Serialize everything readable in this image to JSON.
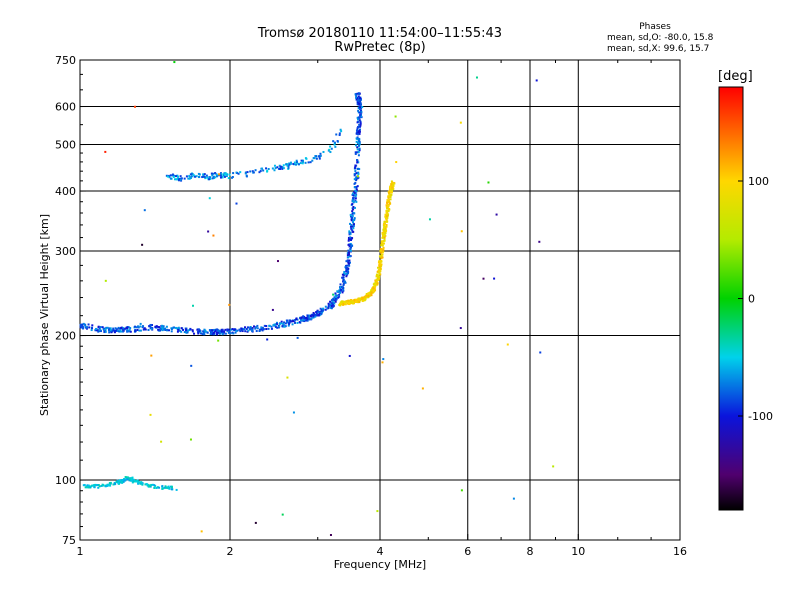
{
  "header": {
    "title_line1": "Tromsø 20180110 11:54:00–11:55:43",
    "title_line2": "RwPretec (8p)",
    "phases_heading": "Phases",
    "phases_o": "mean, sd,O: -80.0, 15.8",
    "phases_x": "mean, sd,X:  99.6, 15.7"
  },
  "colorbar": {
    "unit": "[deg]",
    "range": [
      -180,
      180
    ],
    "ticks": [
      100,
      0,
      -100
    ],
    "tick_labels": [
      "100",
      "0",
      "-100"
    ]
  },
  "chart_data": {
    "type": "scatter",
    "title": "Tromsø 20180110 11:54:00–11:55:43",
    "subtitle": "RwPretec (8p)",
    "xlabel": "Frequency [MHz]",
    "ylabel": "Stationary phase Virtual Height [km]",
    "xscale": "log",
    "yscale": "log",
    "xlim": [
      1,
      16
    ],
    "ylim": [
      75,
      750
    ],
    "xticks": [
      1,
      2,
      4,
      6,
      8,
      10,
      16
    ],
    "xtick_labels": [
      "1",
      "2",
      "4",
      "6",
      "8",
      "10",
      "16"
    ],
    "yticks": [
      75,
      100,
      200,
      300,
      400,
      500,
      600,
      750
    ],
    "ytick_labels": [
      "75",
      "100",
      "200",
      "300",
      "400",
      "500",
      "600",
      "750"
    ],
    "grid": true,
    "color_variable": "phase [deg]",
    "trace_O_mode": {
      "phase_mean_deg": -80,
      "points": [
        [
          1.0,
          210
        ],
        [
          1.1,
          206
        ],
        [
          1.2,
          205
        ],
        [
          1.4,
          208
        ],
        [
          1.6,
          205
        ],
        [
          1.8,
          203
        ],
        [
          2.0,
          204
        ],
        [
          2.2,
          206
        ],
        [
          2.5,
          210
        ],
        [
          2.8,
          216
        ],
        [
          3.0,
          222
        ],
        [
          3.2,
          232
        ],
        [
          3.35,
          250
        ],
        [
          3.45,
          280
        ],
        [
          3.5,
          320
        ],
        [
          3.55,
          380
        ],
        [
          3.6,
          450
        ],
        [
          3.62,
          520
        ],
        [
          3.65,
          600
        ],
        [
          3.6,
          640
        ]
      ]
    },
    "trace_X_mode": {
      "phase_mean_deg": 99.6,
      "points": [
        [
          3.3,
          233
        ],
        [
          3.5,
          235
        ],
        [
          3.7,
          238
        ],
        [
          3.85,
          245
        ],
        [
          3.95,
          260
        ],
        [
          4.0,
          280
        ],
        [
          4.05,
          310
        ],
        [
          4.1,
          340
        ],
        [
          4.15,
          370
        ],
        [
          4.2,
          400
        ],
        [
          4.25,
          415
        ]
      ]
    },
    "trace_E_region": {
      "points": [
        [
          1.0,
          97
        ],
        [
          1.1,
          97
        ],
        [
          1.2,
          99
        ],
        [
          1.25,
          101
        ],
        [
          1.3,
          99
        ],
        [
          1.4,
          97
        ],
        [
          1.55,
          96
        ]
      ]
    },
    "trace_upper_echo": {
      "points": [
        [
          1.5,
          430
        ],
        [
          1.6,
          425
        ],
        [
          1.7,
          432
        ],
        [
          1.8,
          428
        ],
        [
          1.9,
          432
        ],
        [
          2.0,
          430
        ],
        [
          2.2,
          435
        ],
        [
          2.4,
          445
        ],
        [
          2.6,
          450
        ],
        [
          2.8,
          460
        ],
        [
          3.0,
          470
        ],
        [
          3.2,
          490
        ],
        [
          3.35,
          540
        ]
      ]
    }
  }
}
